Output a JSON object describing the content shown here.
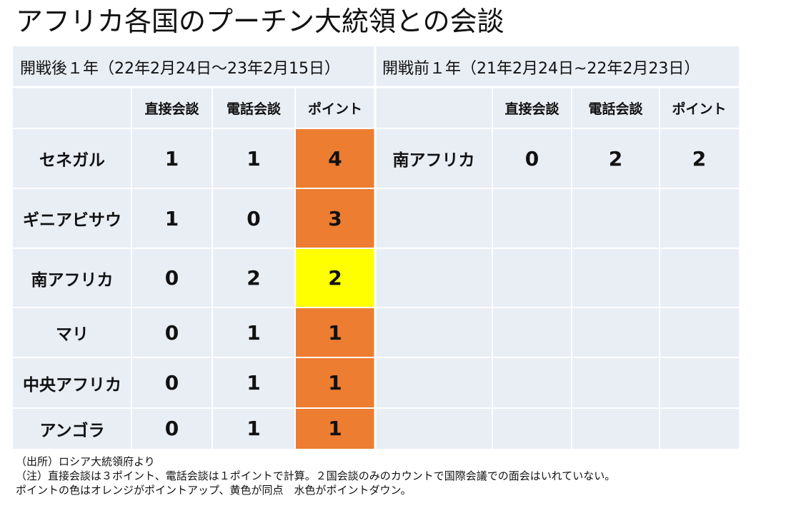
{
  "title": "アフリカ各国のプーチン大統領との会談",
  "notes": {
    "source": "（出所）ロシア大統領府より",
    "note1": "（注）直接会談は３ポイント、電話会談は１ポイントで計算。２国会談のみのカウントで国際会議での面会はいれていない。",
    "note2": "ポイントの色はオレンジがポイントアップ、黄色が同点　水色がポイントダウン。"
  },
  "colors": {
    "table_background": "#e9edf4",
    "point_up": "#ed7d31",
    "point_same": "#ffff00",
    "point_down": "#00b0f0",
    "grid_line": "#ffffff"
  },
  "chart_data": {
    "type": "table",
    "title": "アフリカ各国のプーチン大統領との会談",
    "tables": [
      {
        "period": "開戦後１年（22年2月24日～23年2月15日）",
        "columns": [
          "直接会談",
          "電話会談",
          "ポイント"
        ],
        "rows": [
          {
            "country": "セネガル",
            "direct": "1",
            "phone": "1",
            "points": "4",
            "point_color": "orange"
          },
          {
            "country": "ギニアビサウ",
            "direct": "1",
            "phone": "0",
            "points": "3",
            "point_color": "orange"
          },
          {
            "country": "南アフリカ",
            "direct": "0",
            "phone": "2",
            "points": "2",
            "point_color": "yellow"
          },
          {
            "country": "マリ",
            "direct": "0",
            "phone": "1",
            "points": "1",
            "point_color": "orange"
          },
          {
            "country": "中央アフリカ",
            "direct": "0",
            "phone": "1",
            "points": "1",
            "point_color": "orange"
          },
          {
            "country": "アンゴラ",
            "direct": "0",
            "phone": "1",
            "points": "1",
            "point_color": "orange"
          }
        ]
      },
      {
        "period": "開戦前１年（21年2月24日~22年2月23日）",
        "columns": [
          "直接会談",
          "電話会談",
          "ポイント"
        ],
        "rows": [
          {
            "country": "南アフリカ",
            "direct": "0",
            "phone": "2",
            "points": "2",
            "point_color": "none"
          }
        ]
      }
    ]
  }
}
